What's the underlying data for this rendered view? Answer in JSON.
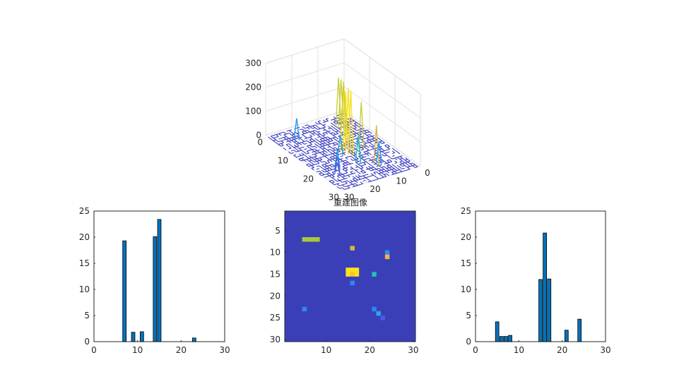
{
  "chart_data": [
    {
      "type": "surface",
      "title": "",
      "xlim": [
        0,
        30
      ],
      "ylim": [
        0,
        30
      ],
      "zlim": [
        0,
        300
      ],
      "x_ticks": [
        "0",
        "10",
        "20",
        "30"
      ],
      "y_ticks": [
        "0",
        "10",
        "20",
        "30"
      ],
      "z_ticks": [
        "0",
        "100",
        "200",
        "300"
      ],
      "peaks": [
        {
          "row": 15,
          "col": 15,
          "value": 265
        },
        {
          "row": 14,
          "col": 16,
          "value": 265
        },
        {
          "row": 15,
          "col": 16,
          "value": 255
        },
        {
          "row": 14,
          "col": 17,
          "value": 262
        },
        {
          "row": 7,
          "col": 5,
          "value": 200
        },
        {
          "row": 7,
          "col": 6,
          "value": 200
        },
        {
          "row": 7,
          "col": 7,
          "value": 200
        },
        {
          "row": 9,
          "col": 16,
          "value": 190
        },
        {
          "row": 11,
          "col": 24,
          "value": 160
        },
        {
          "row": 15,
          "col": 21,
          "value": 110
        },
        {
          "row": 10,
          "col": 24,
          "value": 90
        },
        {
          "row": 17,
          "col": 16,
          "value": 80
        },
        {
          "row": 23,
          "col": 5,
          "value": 85
        },
        {
          "row": 23,
          "col": 21,
          "value": 75
        },
        {
          "row": 24,
          "col": 22,
          "value": 60
        },
        {
          "row": 25,
          "col": 23,
          "value": 45
        }
      ]
    },
    {
      "type": "bar",
      "title": "",
      "x": [
        7,
        9,
        11,
        14,
        15,
        23
      ],
      "values": [
        19.3,
        1.8,
        1.9,
        20.1,
        23.4,
        0.7
      ],
      "xlim": [
        0,
        30
      ],
      "ylim": [
        0,
        25
      ],
      "x_ticks": [
        "0",
        "10",
        "20",
        "30"
      ],
      "y_ticks": [
        "0",
        "5",
        "10",
        "15",
        "20",
        "25"
      ],
      "color": "#0072bd"
    },
    {
      "type": "heatmap",
      "title": "重建图像",
      "rows": 30,
      "cols": 30,
      "background_color": "#3a3fb8",
      "x_ticks": [
        "10",
        "20",
        "30"
      ],
      "y_ticks": [
        "5",
        "10",
        "15",
        "20",
        "25",
        "30"
      ],
      "cells": [
        {
          "row": 7,
          "col": 5,
          "color": "#a8c83a"
        },
        {
          "row": 7,
          "col": 6,
          "color": "#a8c83a"
        },
        {
          "row": 7,
          "col": 7,
          "color": "#a8c83a"
        },
        {
          "row": 7,
          "col": 8,
          "color": "#a8c83a"
        },
        {
          "row": 9,
          "col": 16,
          "color": "#d9b544"
        },
        {
          "row": 10,
          "col": 24,
          "color": "#2f8bf0"
        },
        {
          "row": 11,
          "col": 24,
          "color": "#f3b14a"
        },
        {
          "row": 14,
          "col": 15,
          "color": "#fce21a"
        },
        {
          "row": 14,
          "col": 16,
          "color": "#fce21a"
        },
        {
          "row": 14,
          "col": 17,
          "color": "#fce21a"
        },
        {
          "row": 15,
          "col": 15,
          "color": "#fce21a"
        },
        {
          "row": 15,
          "col": 16,
          "color": "#f4c430"
        },
        {
          "row": 15,
          "col": 17,
          "color": "#fce21a"
        },
        {
          "row": 15,
          "col": 21,
          "color": "#22c2b4"
        },
        {
          "row": 17,
          "col": 16,
          "color": "#2e86f0"
        },
        {
          "row": 23,
          "col": 5,
          "color": "#2e86f0"
        },
        {
          "row": 23,
          "col": 21,
          "color": "#2e86f0"
        },
        {
          "row": 24,
          "col": 22,
          "color": "#29a8e0"
        },
        {
          "row": 25,
          "col": 23,
          "color": "#4c5ae0"
        }
      ]
    },
    {
      "type": "bar",
      "title": "",
      "x": [
        5,
        6,
        7,
        8,
        15,
        16,
        17,
        21,
        24
      ],
      "values": [
        3.8,
        1.0,
        1.0,
        1.2,
        11.9,
        20.8,
        12.0,
        2.2,
        4.3
      ],
      "xlim": [
        0,
        30
      ],
      "ylim": [
        0,
        25
      ],
      "x_ticks": [
        "0",
        "10",
        "20",
        "30"
      ],
      "y_ticks": [
        "0",
        "5",
        "10",
        "15",
        "20",
        "25"
      ],
      "color": "#0072bd"
    }
  ]
}
